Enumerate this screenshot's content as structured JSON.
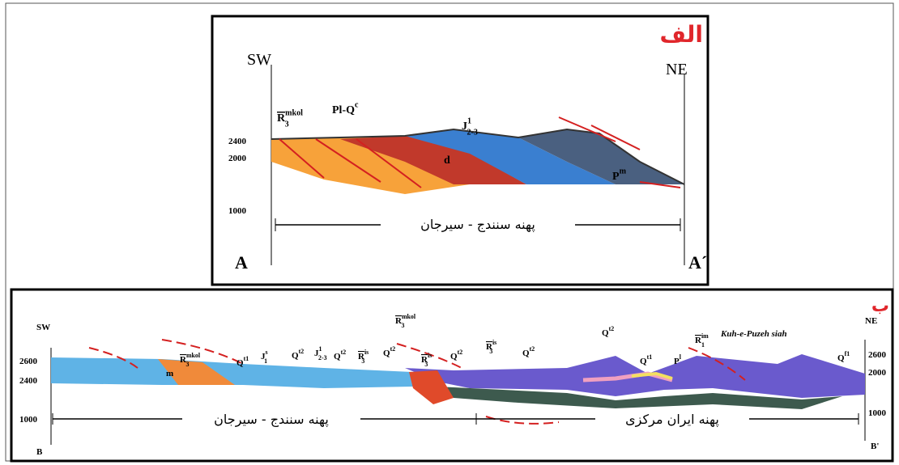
{
  "panel_a": {
    "label": "الف",
    "left_dir": "SW",
    "right_dir": "NE",
    "elevations": [
      "2400",
      "2000",
      "1000"
    ],
    "zone": "پهنه سنندج - سیرجان",
    "start": "A",
    "end": "A´",
    "units": [
      {
        "symbol": "R",
        "sup": "mkol",
        "sub": "3"
      },
      {
        "symbol": "Pl-Q",
        "sup": "c"
      },
      {
        "symbol": "J",
        "sup": "1",
        "sub": "2-3"
      },
      {
        "symbol": "d"
      },
      {
        "symbol": "P",
        "sup": "m"
      }
    ]
  },
  "panel_b": {
    "label": "ب",
    "left_dir": "SW",
    "right_dir": "NE",
    "left_elevations": [
      "2600",
      "2400",
      "1000"
    ],
    "right_elevations": [
      "2600",
      "2000",
      "1000"
    ],
    "zones": [
      "پهنه سنندج - سیرجان",
      "پهنه ایران مرکزی"
    ],
    "start": "B",
    "end": "B'",
    "place": "Kuh-e-Puzeh siah",
    "units": [
      {
        "symbol": "m"
      },
      {
        "symbol": "R",
        "sup": "mkol",
        "sub": "3"
      },
      {
        "symbol": "Q",
        "sup": "t1"
      },
      {
        "symbol": "J",
        "sup": "s",
        "sub": "1"
      },
      {
        "symbol": "J",
        "sup": "1",
        "sub": "2-3"
      },
      {
        "symbol": "Q",
        "sup": "t2"
      },
      {
        "symbol": "Q",
        "sup": "t2"
      },
      {
        "symbol": "R",
        "sup": "is",
        "sub": "3"
      },
      {
        "symbol": "Q",
        "sup": "t2"
      },
      {
        "symbol": "R",
        "sup": "mkol",
        "sub": "3"
      },
      {
        "symbol": "R",
        "sup": "is",
        "sub": "3"
      },
      {
        "symbol": "Q",
        "sup": "t2"
      },
      {
        "symbol": "R",
        "sup": "is",
        "sub": "3"
      },
      {
        "symbol": "Q",
        "sup": "t2"
      },
      {
        "symbol": "Q",
        "sup": "t2"
      },
      {
        "symbol": "Q",
        "sup": "t1"
      },
      {
        "symbol": "P",
        "sup": "l"
      },
      {
        "symbol": "R",
        "sup": "im",
        "sub": "1"
      },
      {
        "symbol": "Q",
        "sup": "f1"
      }
    ]
  }
}
